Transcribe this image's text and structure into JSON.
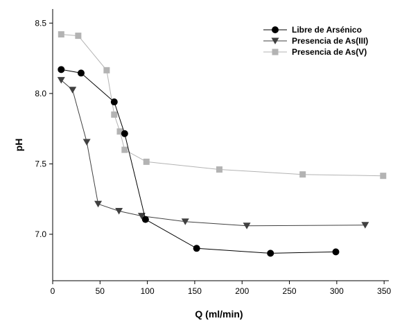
{
  "chart_data": {
    "type": "line",
    "xlabel": "Q (ml/min)",
    "ylabel": "pH",
    "xlim": [
      0,
      355
    ],
    "ylim": [
      6.67,
      8.6
    ],
    "xticks": [
      0,
      50,
      100,
      150,
      200,
      250,
      300,
      350
    ],
    "yticks": [
      7.0,
      7.5,
      8.0,
      8.5
    ],
    "xtick_labels": [
      "0",
      "50",
      "100",
      "150",
      "200",
      "250",
      "300",
      "350"
    ],
    "ytick_labels": [
      "7.0",
      "7.5",
      "8.0",
      "8.5"
    ],
    "grid": false,
    "legend_position": "top-right",
    "series": [
      {
        "name": "Libre de Arsénico",
        "marker": "circle",
        "color": "#000000",
        "x": [
          9,
          30,
          65,
          76,
          98,
          152,
          230,
          299
        ],
        "y": [
          8.17,
          8.145,
          7.94,
          7.715,
          7.105,
          6.9,
          6.865,
          6.875
        ]
      },
      {
        "name": "Presencia de As(III)",
        "marker": "triangle-down",
        "color": "#404040",
        "x": [
          9,
          21,
          36,
          48,
          70,
          94,
          140,
          205,
          330
        ],
        "y": [
          8.095,
          8.025,
          7.655,
          7.215,
          7.165,
          7.13,
          7.09,
          7.06,
          7.065
        ]
      },
      {
        "name": "Presencia de As(V)",
        "marker": "square",
        "color": "#b3b3b3",
        "x": [
          9,
          27,
          57,
          65,
          71,
          76,
          99,
          176,
          264,
          349
        ],
        "y": [
          8.42,
          8.41,
          8.165,
          7.85,
          7.73,
          7.6,
          7.515,
          7.46,
          7.425,
          7.415
        ]
      }
    ]
  }
}
